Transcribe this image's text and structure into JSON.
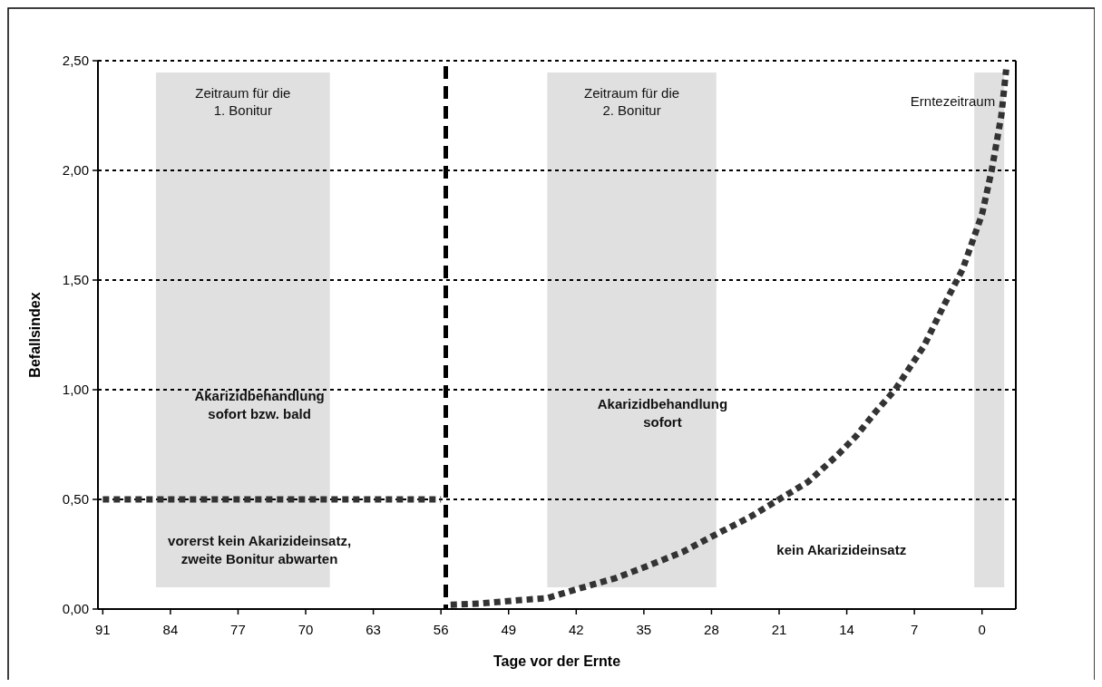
{
  "chart_data": {
    "type": "line",
    "xlabel": "Tage vor der Ernte",
    "ylabel": "Befallsindex",
    "xlim": [
      91.5,
      -3.5
    ],
    "xticks": [
      91,
      84,
      77,
      70,
      63,
      56,
      49,
      42,
      35,
      28,
      21,
      14,
      7,
      0
    ],
    "ylim": [
      0,
      2.5
    ],
    "yticks": [
      {
        "value": 0,
        "label": "0,00"
      },
      {
        "value": 0.5,
        "label": "0,50"
      },
      {
        "value": 1,
        "label": "1,00"
      },
      {
        "value": 1.5,
        "label": "1,50"
      },
      {
        "value": 2,
        "label": "2,00"
      },
      {
        "value": 2.5,
        "label": "2,50"
      }
    ],
    "grid": "y",
    "line_style": "dotted",
    "marker": "none",
    "series": [
      {
        "color": "#333333",
        "x": [
          91,
          56
        ],
        "values": [
          0.5,
          0.5
        ]
      },
      {
        "color": "#333333",
        "x": [
          55,
          52,
          48,
          45,
          42,
          38,
          35,
          31,
          28,
          24,
          21,
          18,
          15,
          13,
          11,
          9,
          6,
          4,
          2,
          0,
          -1,
          -2,
          -2.5
        ],
        "values": [
          0.02,
          0.025,
          0.04,
          0.05,
          0.09,
          0.14,
          0.19,
          0.26,
          0.33,
          0.42,
          0.5,
          0.58,
          0.7,
          0.79,
          0.9,
          1.0,
          1.2,
          1.38,
          1.55,
          1.8,
          2.0,
          2.25,
          2.46
        ]
      }
    ],
    "ref_lines": [
      {
        "axis": "x",
        "value": 55.5,
        "color": "#000000",
        "line_style": "dashed"
      }
    ],
    "bands": [
      {
        "axis": "x",
        "from": 85.5,
        "to": 67.5,
        "label": "Zeitraum für die\n1. Bonitur",
        "color": "#e0e0e0"
      },
      {
        "axis": "x",
        "from": 45,
        "to": 27.5,
        "label": "Zeitraum für die\n2. Bonitur",
        "color": "#e0e0e0"
      },
      {
        "axis": "x",
        "from": 0.8,
        "to": -2.3,
        "label": "Erntezeitraum",
        "color": "#e0e0e0"
      }
    ],
    "annotations": [
      "Akarizidbehandlung\nsofort bzw. bald",
      "vorerst kein Akarizideinsatz,\nzweite Bonitur abwarten",
      "Akarizidbehandlung\nsofort",
      "kein Akarizideinsatz"
    ]
  }
}
